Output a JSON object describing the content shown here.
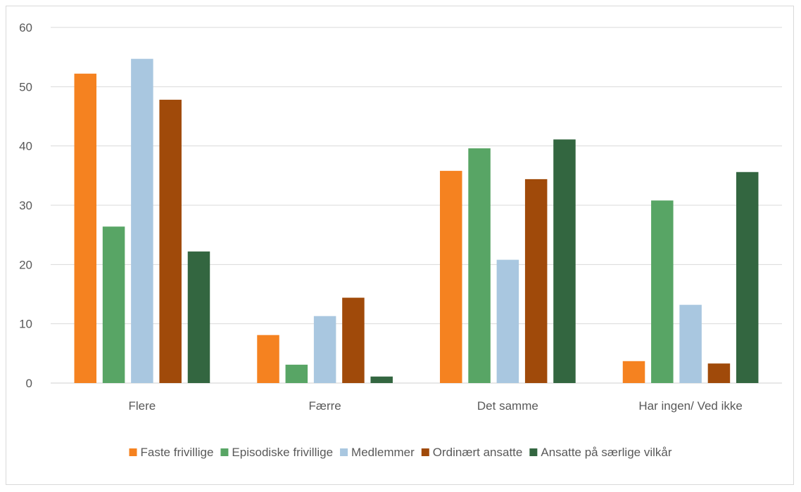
{
  "chart_data": {
    "type": "bar",
    "categories": [
      "Flere",
      "Færre",
      "Det samme",
      "Har ingen/ Ved ikke"
    ],
    "series": [
      {
        "name": "Faste frivillige",
        "color": "#F58220",
        "values": [
          52.2,
          8.1,
          35.8,
          3.7
        ]
      },
      {
        "name": "Episodiske frivillige",
        "color": "#58A565",
        "values": [
          26.4,
          3.1,
          39.6,
          30.8
        ]
      },
      {
        "name": "Medlemmer",
        "color": "#A9C7E0",
        "values": [
          54.7,
          11.3,
          20.8,
          13.2
        ]
      },
      {
        "name": "Ordinært ansatte",
        "color": "#A04A0A",
        "values": [
          47.8,
          14.4,
          34.4,
          3.3
        ]
      },
      {
        "name": "Ansatte på særlige vilkår",
        "color": "#336640",
        "values": [
          22.2,
          1.1,
          41.1,
          35.6
        ]
      }
    ],
    "yticks": [
      "0",
      "10",
      "20",
      "30",
      "40",
      "50",
      "60"
    ],
    "ylim": [
      0,
      60
    ],
    "grid": true,
    "legend_position": "bottom",
    "title": "",
    "xlabel": "",
    "ylabel": ""
  }
}
